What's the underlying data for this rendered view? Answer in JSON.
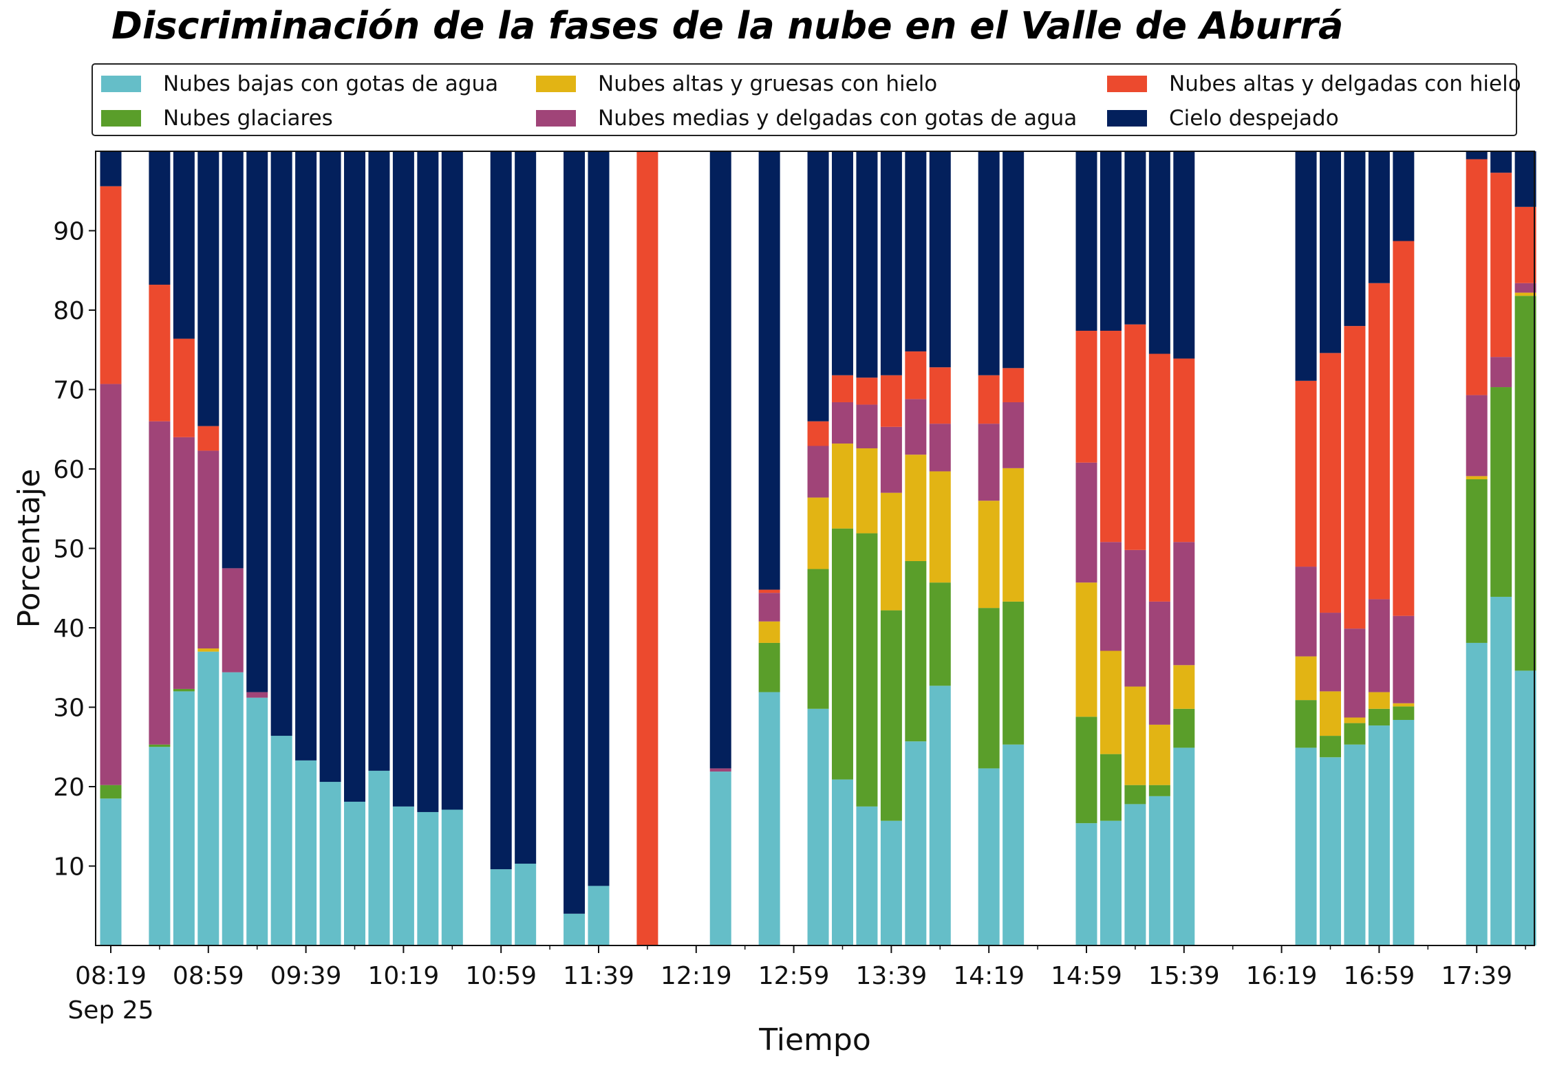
{
  "chart_data": {
    "type": "bar",
    "stacked": true,
    "title": "Discriminación de la fases de la nube en el Valle de Aburrá",
    "xlabel": "Tiempo",
    "ylabel": "Porcentaje",
    "ylim": [
      0,
      100
    ],
    "yticks": [
      10,
      20,
      30,
      40,
      50,
      60,
      70,
      80,
      90
    ],
    "xticks": [
      "08:19",
      "08:59",
      "09:39",
      "10:19",
      "10:59",
      "11:39",
      "12:19",
      "12:59",
      "13:39",
      "14:19",
      "14:59",
      "15:39",
      "16:19",
      "16:59",
      "17:39"
    ],
    "x_date_label": "Sep 25",
    "x_start": "08:19",
    "x_interval_minutes": 10,
    "grid": false,
    "legend_position": "top",
    "series": [
      {
        "name": "Nubes bajas con gotas de agua",
        "color": "#65bec8"
      },
      {
        "name": "Nubes glaciares",
        "color": "#5a9e2a"
      },
      {
        "name": "Nubes altas y gruesas con hielo",
        "color": "#e2b414"
      },
      {
        "name": "Nubes medias y delgadas con gotas de agua",
        "color": "#a04478"
      },
      {
        "name": "Nubes altas y delgadas con hielo",
        "color": "#ec4a2e"
      },
      {
        "name": "Cielo despejado",
        "color": "#03205c"
      }
    ],
    "bars": [
      {
        "x": "08:19",
        "values": [
          18.5,
          1.7,
          0.0,
          50.5,
          24.9,
          4.4
        ]
      },
      {
        "x": "08:39",
        "values": [
          25.0,
          0.3,
          0.0,
          40.7,
          17.2,
          16.8
        ]
      },
      {
        "x": "08:49",
        "values": [
          32.0,
          0.3,
          0.0,
          31.7,
          12.4,
          23.6
        ]
      },
      {
        "x": "08:59",
        "values": [
          37.0,
          0.0,
          0.4,
          24.9,
          3.1,
          34.6
        ]
      },
      {
        "x": "09:09",
        "values": [
          34.4,
          0.0,
          0.0,
          13.1,
          0.0,
          52.5
        ]
      },
      {
        "x": "09:19",
        "values": [
          31.2,
          0.0,
          0.0,
          0.7,
          0.0,
          68.1
        ]
      },
      {
        "x": "09:29",
        "values": [
          26.4,
          0.0,
          0.0,
          0.0,
          0.0,
          73.6
        ]
      },
      {
        "x": "09:39",
        "values": [
          23.3,
          0.0,
          0.0,
          0.0,
          0.0,
          76.7
        ]
      },
      {
        "x": "09:49",
        "values": [
          20.6,
          0.0,
          0.0,
          0.0,
          0.0,
          79.4
        ]
      },
      {
        "x": "09:59",
        "values": [
          18.1,
          0.0,
          0.0,
          0.0,
          0.0,
          81.9
        ]
      },
      {
        "x": "10:09",
        "values": [
          22.0,
          0.0,
          0.0,
          0.0,
          0.0,
          78.0
        ]
      },
      {
        "x": "10:19",
        "values": [
          17.5,
          0.0,
          0.0,
          0.0,
          0.0,
          82.5
        ]
      },
      {
        "x": "10:29",
        "values": [
          16.8,
          0.0,
          0.0,
          0.0,
          0.0,
          83.2
        ]
      },
      {
        "x": "10:39",
        "values": [
          17.1,
          0.0,
          0.0,
          0.0,
          0.0,
          82.9
        ]
      },
      {
        "x": "10:59",
        "values": [
          9.6,
          0.0,
          0.0,
          0.0,
          0.0,
          90.4
        ]
      },
      {
        "x": "11:09",
        "values": [
          10.3,
          0.0,
          0.0,
          0.0,
          0.0,
          89.7
        ]
      },
      {
        "x": "11:29",
        "values": [
          4.0,
          0.0,
          0.0,
          0.0,
          0.0,
          96.0
        ]
      },
      {
        "x": "11:39",
        "values": [
          7.5,
          0.0,
          0.0,
          0.0,
          0.0,
          92.5
        ]
      },
      {
        "x": "11:59",
        "values": [
          0.0,
          0.0,
          0.0,
          0.0,
          100.0,
          0.0
        ]
      },
      {
        "x": "12:29",
        "values": [
          21.9,
          0.0,
          0.0,
          0.4,
          0.0,
          77.7
        ]
      },
      {
        "x": "12:49",
        "values": [
          31.9,
          6.2,
          2.7,
          3.6,
          0.4,
          55.2
        ]
      },
      {
        "x": "13:09",
        "values": [
          29.8,
          17.6,
          9.0,
          6.5,
          3.1,
          34.0
        ]
      },
      {
        "x": "13:19",
        "values": [
          20.9,
          31.6,
          10.7,
          5.2,
          3.4,
          28.2
        ]
      },
      {
        "x": "13:29",
        "values": [
          17.5,
          34.4,
          10.7,
          5.5,
          3.4,
          28.5
        ]
      },
      {
        "x": "13:39",
        "values": [
          15.7,
          26.5,
          14.8,
          8.3,
          6.5,
          28.2
        ]
      },
      {
        "x": "13:49",
        "values": [
          25.7,
          22.7,
          13.4,
          7.0,
          6.0,
          25.2
        ]
      },
      {
        "x": "13:59",
        "values": [
          32.7,
          13.0,
          14.0,
          6.0,
          7.1,
          27.2
        ]
      },
      {
        "x": "14:19",
        "values": [
          22.3,
          20.2,
          13.5,
          9.7,
          6.1,
          28.2
        ]
      },
      {
        "x": "14:29",
        "values": [
          25.3,
          18.0,
          16.8,
          8.3,
          4.3,
          27.3
        ]
      },
      {
        "x": "14:59",
        "values": [
          15.4,
          13.4,
          16.9,
          15.1,
          16.6,
          22.6
        ]
      },
      {
        "x": "15:09",
        "values": [
          15.7,
          8.4,
          13.0,
          13.7,
          26.6,
          22.6
        ]
      },
      {
        "x": "15:19",
        "values": [
          17.8,
          2.4,
          12.4,
          17.2,
          28.4,
          21.8
        ]
      },
      {
        "x": "15:29",
        "values": [
          18.8,
          1.4,
          7.6,
          15.5,
          31.2,
          25.5
        ]
      },
      {
        "x": "15:39",
        "values": [
          24.9,
          4.9,
          5.5,
          15.5,
          23.1,
          26.1
        ]
      },
      {
        "x": "16:29",
        "values": [
          24.9,
          6.0,
          5.5,
          11.3,
          23.4,
          28.9
        ]
      },
      {
        "x": "16:39",
        "values": [
          23.7,
          2.7,
          5.6,
          9.9,
          32.7,
          25.4
        ]
      },
      {
        "x": "16:49",
        "values": [
          25.3,
          2.7,
          0.7,
          11.2,
          38.1,
          22.0
        ]
      },
      {
        "x": "16:59",
        "values": [
          27.7,
          2.1,
          2.1,
          11.7,
          39.8,
          16.6
        ]
      },
      {
        "x": "17:09",
        "values": [
          28.4,
          1.7,
          0.4,
          11.0,
          47.2,
          11.3
        ]
      },
      {
        "x": "17:39",
        "values": [
          38.1,
          20.6,
          0.4,
          10.2,
          29.7,
          1.0
        ]
      },
      {
        "x": "17:49",
        "values": [
          43.9,
          26.4,
          0.0,
          3.8,
          23.2,
          2.7
        ]
      },
      {
        "x": "17:59",
        "values": [
          34.6,
          47.2,
          0.4,
          1.2,
          9.6,
          7.0
        ]
      }
    ]
  }
}
